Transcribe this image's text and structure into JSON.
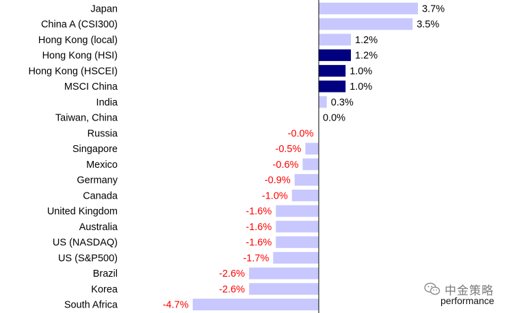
{
  "chart_data": {
    "type": "bar",
    "orientation": "horizontal",
    "categories": [
      "Japan",
      "China A (CSI300)",
      "Hong Kong (local)",
      "Hong Kong (HSI)",
      "Hong Kong (HSCEI)",
      "MSCI China",
      "India",
      "Taiwan, China",
      "Russia",
      "Singapore",
      "Mexico",
      "Germany",
      "Canada",
      "United Kingdom",
      "Australia",
      "US (NASDAQ)",
      "US (S&P500)",
      "Brazil",
      "Korea",
      "South Africa"
    ],
    "values": [
      3.7,
      3.5,
      1.2,
      1.2,
      1.0,
      1.0,
      0.3,
      0.0,
      -0.0,
      -0.5,
      -0.6,
      -0.9,
      -1.0,
      -1.6,
      -1.6,
      -1.6,
      -1.7,
      -2.6,
      -2.6,
      -4.7
    ],
    "value_labels": [
      "3.7%",
      "3.5%",
      "1.2%",
      "1.2%",
      "1.0%",
      "1.0%",
      "0.3%",
      "0.0%",
      "-0.0%",
      "-0.5%",
      "-0.6%",
      "-0.9%",
      "-1.0%",
      "-1.6%",
      "-1.6%",
      "-1.6%",
      "-1.7%",
      "-2.6%",
      "-2.6%",
      "-4.7%"
    ],
    "highlighted": [
      "Hong Kong (HSI)",
      "Hong Kong (HSCEI)",
      "MSCI China"
    ],
    "xlim": [
      -4.7,
      3.7
    ],
    "title": "",
    "xlabel": "",
    "ylabel": "",
    "grid": false,
    "colors": {
      "bar": "#c8c8ff",
      "bar_highlight": "#000080",
      "positive_label": "#000000",
      "negative_label": "#ff0000",
      "axis": "#000000"
    }
  },
  "watermark": {
    "icon": "wechat-icon",
    "text": "中金策略",
    "subtext": "performance"
  }
}
